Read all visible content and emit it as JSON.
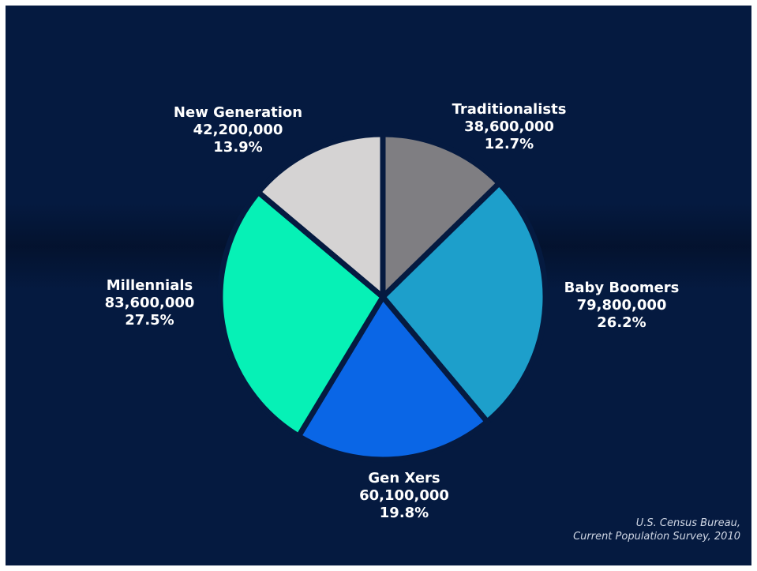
{
  "chart_data": {
    "type": "pie",
    "title": "",
    "slices": [
      {
        "name": "Traditionalists",
        "value": 38600000,
        "value_label": "38,600,000",
        "percent": 12.7,
        "percent_label": "12.7%",
        "color": "#7f7e82"
      },
      {
        "name": "Baby Boomers",
        "value": 79800000,
        "value_label": "79,800,000",
        "percent": 26.2,
        "percent_label": "26.2%",
        "color": "#1d9fcb"
      },
      {
        "name": "Gen Xers",
        "value": 60100000,
        "value_label": "60,100,000",
        "percent": 19.8,
        "percent_label": "19.8%",
        "color": "#0a66e6"
      },
      {
        "name": "Millennials",
        "value": 83600000,
        "value_label": "83,600,000",
        "percent": 27.5,
        "percent_label": "27.5%",
        "color": "#06f1b6"
      },
      {
        "name": "New Generation",
        "value": 42200000,
        "value_label": "42,200,000",
        "percent": 13.9,
        "percent_label": "13.9%",
        "color": "#d5d3d3"
      }
    ],
    "start_angle": "12 o'clock",
    "direction": "clockwise",
    "legend": "none",
    "source_lines": [
      "U.S. Census Bureau,",
      "Current Population Survey, 2010"
    ]
  },
  "colors": {
    "background": "#051a40",
    "separator": "#051a40",
    "label_text": "#ffffff",
    "source_text": "#cfd6e4"
  }
}
